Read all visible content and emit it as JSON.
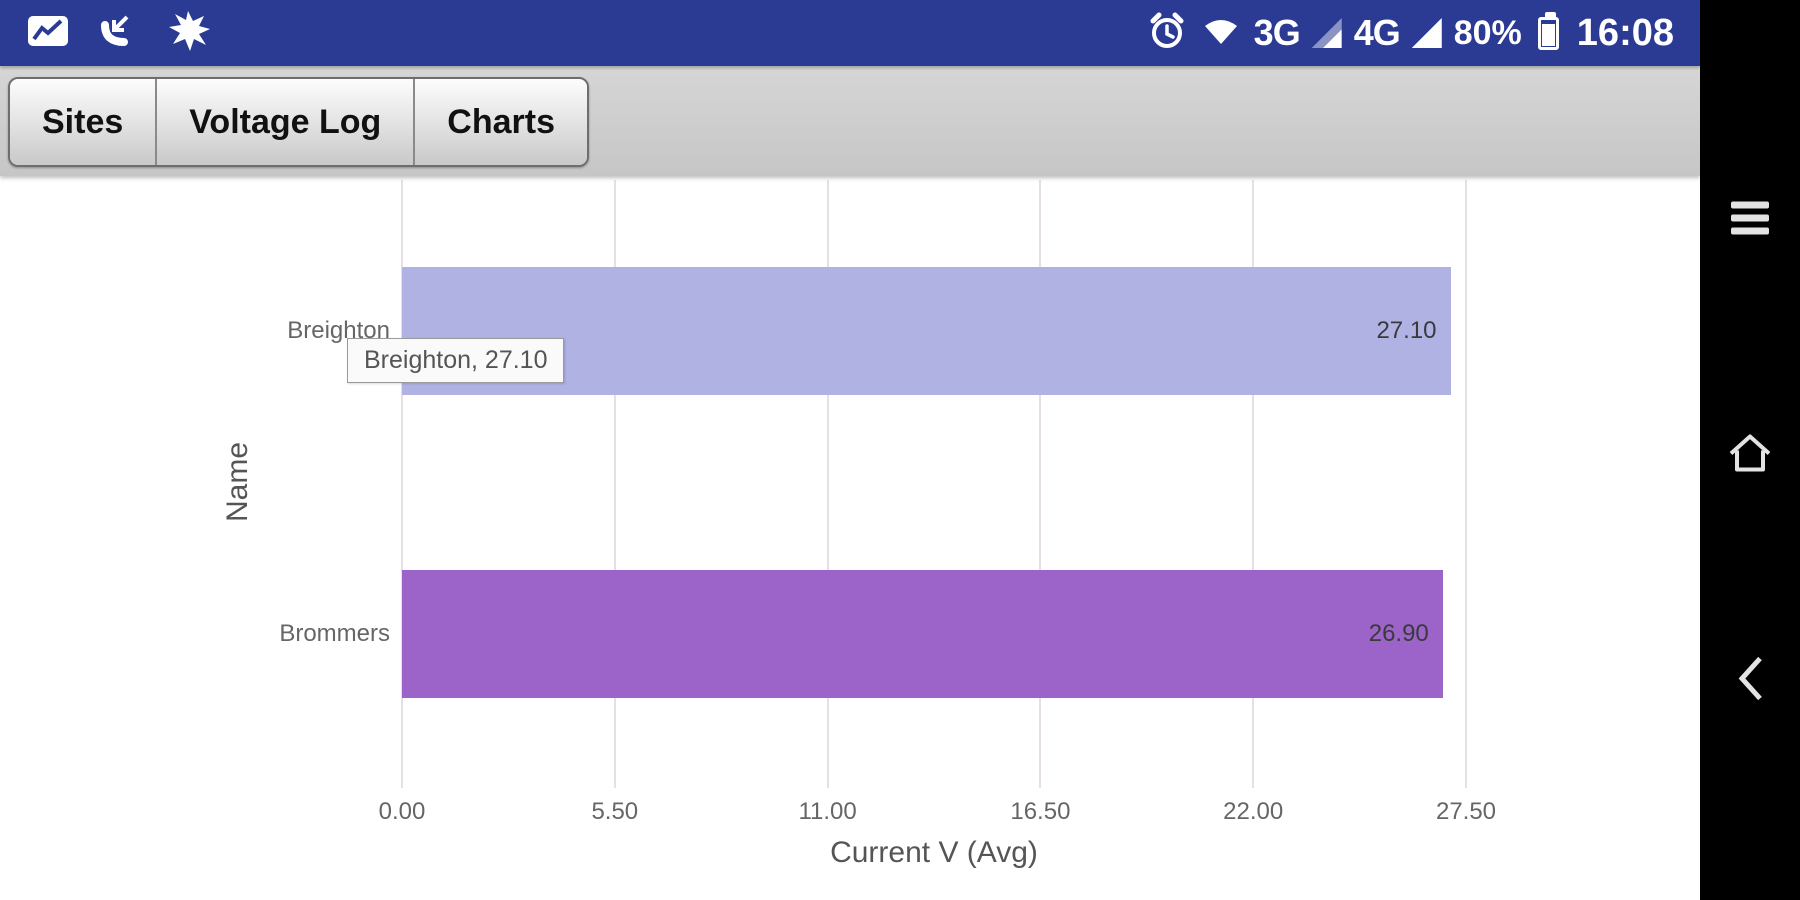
{
  "status_bar": {
    "time": "16:08",
    "battery_percent": "80%",
    "network_labels": [
      "3G",
      "4G"
    ],
    "icons_left": [
      "stats-notification-icon",
      "incoming-call-icon",
      "burst-notification-icon"
    ],
    "icons_right": [
      "alarm-icon",
      "wifi-icon",
      "signal-3g-icon",
      "signal-4g-icon",
      "battery-icon"
    ]
  },
  "toolbar": {
    "tabs": [
      {
        "label": "Sites"
      },
      {
        "label": "Voltage Log"
      },
      {
        "label": "Charts"
      }
    ]
  },
  "chart_data": {
    "type": "bar",
    "orientation": "horizontal",
    "title": "",
    "categories": [
      "Breighton",
      "Brommers"
    ],
    "values": [
      27.1,
      26.9
    ],
    "value_labels": [
      "27.10",
      "26.90"
    ],
    "bar_colors": [
      "#b0b2e4",
      "#9c64c9"
    ],
    "xlabel": "Current V (Avg)",
    "ylabel": "Name",
    "xlim": [
      0,
      27.5
    ],
    "x_ticks": [
      "0.00",
      "5.50",
      "11.00",
      "16.50",
      "22.00",
      "27.50"
    ],
    "grid": true,
    "legend": false,
    "tooltip": "Breighton, 27.10"
  },
  "nav_bar": {
    "buttons": [
      "menu",
      "home",
      "back"
    ]
  }
}
